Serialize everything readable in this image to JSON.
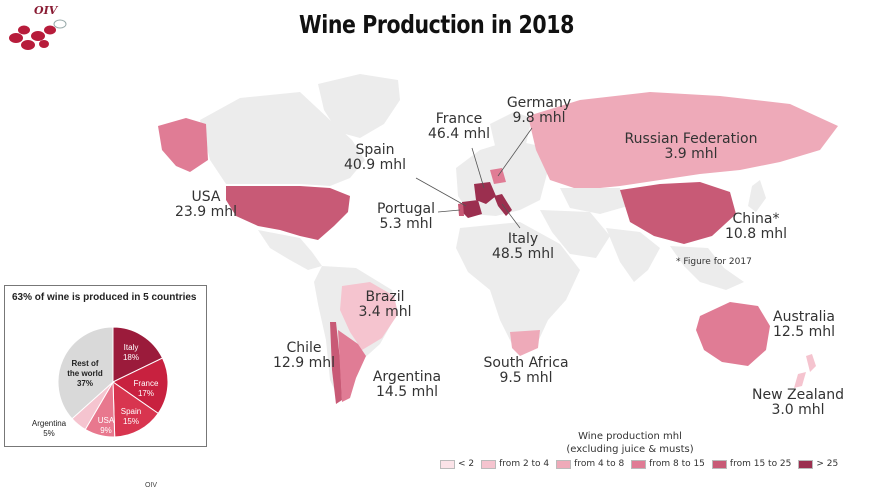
{
  "title": "Wine Production in 2018",
  "logo_text": "OIV",
  "footer": "OIV",
  "note": "* Figure for 2017",
  "colors": {
    "land": "#ececec",
    "lt2": "#fbe3e8",
    "2to4": "#f5c4cf",
    "4to8": "#eeaab9",
    "8to15": "#e07c95",
    "15to25": "#c85a76",
    "gt25": "#9b2f4f"
  },
  "countries": [
    {
      "name": "France",
      "value": "46.4 mhl"
    },
    {
      "name": "Germany",
      "value": "9.8 mhl"
    },
    {
      "name": "Spain",
      "value": "40.9 mhl"
    },
    {
      "name": "Russian Federation",
      "value": "3.9 mhl"
    },
    {
      "name": "USA",
      "value": "23.9 mhl"
    },
    {
      "name": "Portugal",
      "value": "5.3 mhl"
    },
    {
      "name": "Italy",
      "value": "48.5 mhl"
    },
    {
      "name": "China*",
      "value": "10.8 mhl"
    },
    {
      "name": "Brazil",
      "value": "3.4 mhl"
    },
    {
      "name": "Australia",
      "value": "12.5 mhl"
    },
    {
      "name": "Chile",
      "value": "12.9 mhl"
    },
    {
      "name": "South Africa",
      "value": "9.5 mhl"
    },
    {
      "name": "Argentina",
      "value": "14.5 mhl"
    },
    {
      "name": "New Zealand",
      "value": "3.0 mhl"
    }
  ],
  "legend": {
    "title_line1": "Wine production mhl",
    "title_line2": "(excluding juice & musts)",
    "items": [
      {
        "label": "< 2",
        "color": "#fbe3e8"
      },
      {
        "label": "from 2 to 4",
        "color": "#f5c4cf"
      },
      {
        "label": "from 4 to 8",
        "color": "#eeaab9"
      },
      {
        "label": "from 8 to 15",
        "color": "#e07c95"
      },
      {
        "label": "from 15 to 25",
        "color": "#c85a76"
      },
      {
        "label": "> 25",
        "color": "#9b2f4f"
      }
    ]
  },
  "pie": {
    "title": "63% of wine is produced in 5 countries",
    "slices": [
      {
        "name": "Italy",
        "pct": 18,
        "color": "#9b1b3b"
      },
      {
        "name": "France",
        "pct": 17,
        "color": "#c8213f"
      },
      {
        "name": "Spain",
        "pct": 15,
        "color": "#d8354f"
      },
      {
        "name": "USA",
        "pct": 9,
        "color": "#e8788e"
      },
      {
        "name": "Argentina",
        "pct": 5,
        "color": "#f5c4cf"
      },
      {
        "name": "Rest of the world",
        "pct": 37,
        "color": "#d9d9d9"
      }
    ],
    "labels": [
      {
        "line1": "Italy",
        "line2": "18%"
      },
      {
        "line1": "France",
        "line2": "17%"
      },
      {
        "line1": "Spain",
        "line2": "15%"
      },
      {
        "line1": "USA",
        "line2": "9%"
      },
      {
        "line1": "Argentina",
        "line2": "5%"
      },
      {
        "line1": "Rest of",
        "line2": "the world",
        "line3": "37%"
      }
    ]
  }
}
